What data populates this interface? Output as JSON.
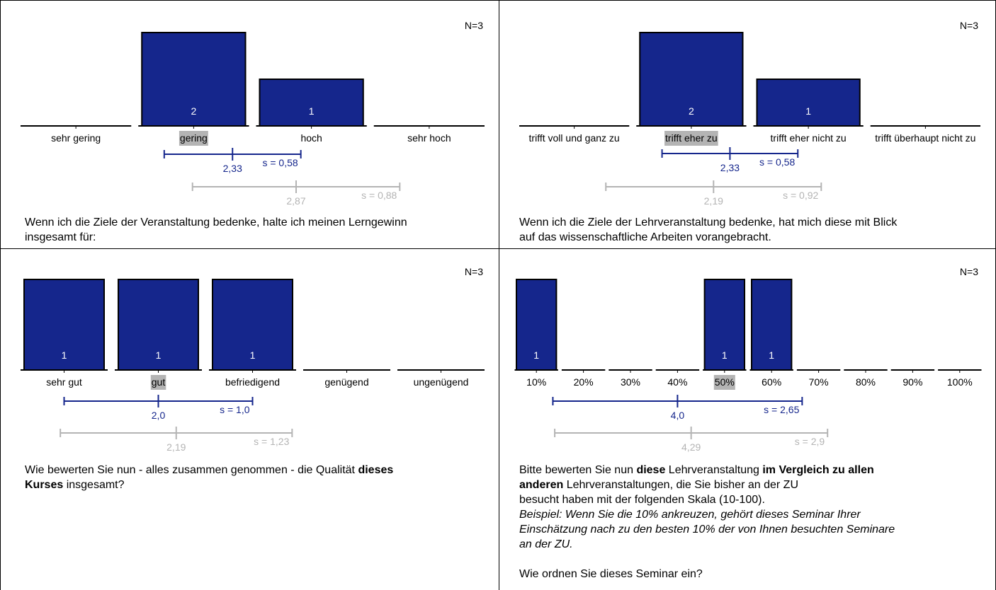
{
  "colors": {
    "bar": "#15268c",
    "bar_border": "#000000",
    "course_stats": "#15268c",
    "comparison_stats": "#b4b4b4",
    "median_highlight": "#b4b4b4"
  },
  "panels": [
    {
      "n_label": "N=3",
      "question_lines": [
        [
          {
            "t": "Wenn ich die Ziele der Veranstaltung bedenke, halte ich meinen Lerngewinn"
          }
        ],
        [
          {
            "t": "insgesamt für:"
          }
        ]
      ],
      "chart_data": {
        "type": "bar",
        "categories": [
          "sehr gering",
          "gering",
          "hoch",
          "sehr hoch"
        ],
        "values": [
          0,
          2,
          1,
          0
        ],
        "highlight_index": 1,
        "course": {
          "mean": 2.33,
          "mean_label": "2,33",
          "sd": 0.58,
          "sd_label": "s = 0,58"
        },
        "comparison": {
          "mean": 2.87,
          "mean_label": "2,87",
          "sd": 0.88,
          "sd_label": "s = 0,88"
        }
      }
    },
    {
      "n_label": "N=3",
      "question_lines": [
        [
          {
            "t": "Wenn ich die Ziele der Lehrveranstaltung bedenke, hat mich diese mit Blick"
          }
        ],
        [
          {
            "t": "auf das wissenschaftliche Arbeiten vorangebracht."
          }
        ]
      ],
      "chart_data": {
        "type": "bar",
        "categories": [
          "trifft voll und ganz zu",
          "trifft eher zu",
          "trifft eher nicht zu",
          "trifft überhaupt nicht zu"
        ],
        "values": [
          0,
          2,
          1,
          0
        ],
        "highlight_index": 1,
        "course": {
          "mean": 2.33,
          "mean_label": "2,33",
          "sd": 0.58,
          "sd_label": "s = 0,58"
        },
        "comparison": {
          "mean": 2.19,
          "mean_label": "2,19",
          "sd": 0.92,
          "sd_label": "s = 0,92"
        }
      }
    },
    {
      "n_label": "N=3",
      "question_lines": [
        [
          {
            "t": "Wie bewerten Sie nun - alles zusammen genommen - die Qualität "
          },
          {
            "t": "dieses",
            "b": true
          }
        ],
        [
          {
            "t": "Kurses",
            "b": true
          },
          {
            "t": " insgesamt?"
          }
        ]
      ],
      "chart_data": {
        "type": "bar",
        "categories": [
          "sehr gut",
          "gut",
          "befriedigend",
          "genügend",
          "ungenügend"
        ],
        "values": [
          1,
          1,
          1,
          0,
          0
        ],
        "highlight_index": 1,
        "course": {
          "mean": 2.0,
          "mean_label": "2,0",
          "sd": 1.0,
          "sd_label": "s = 1,0"
        },
        "comparison": {
          "mean": 2.19,
          "mean_label": "2,19",
          "sd": 1.23,
          "sd_label": "s = 1,23"
        }
      }
    },
    {
      "n_label": "N=3",
      "question_lines": [
        [
          {
            "t": "Bitte bewerten Sie nun "
          },
          {
            "t": "diese",
            "b": true
          },
          {
            "t": " Lehrveranstaltung "
          },
          {
            "t": "im Vergleich zu allen",
            "b": true
          }
        ],
        [
          {
            "t": "anderen ",
            "b": true
          },
          {
            "t": " Lehrveranstaltungen, die Sie bisher an der ZU"
          }
        ],
        [
          {
            "t": "besucht haben mit der folgenden Skala (10-100)."
          }
        ],
        [
          {
            "t": "Beispiel: Wenn Sie die 10% ankreuzen, gehört dieses Seminar Ihrer",
            "i": true
          }
        ],
        [
          {
            "t": "Einschätzung nach zu den besten 10% der von Ihnen besuchten Seminare",
            "i": true
          }
        ],
        [
          {
            "t": "an der ZU.",
            "i": true
          }
        ],
        [
          {
            "t": " "
          }
        ],
        [
          {
            "t": "Wie ordnen Sie dieses Seminar ein?"
          }
        ]
      ],
      "chart_data": {
        "type": "bar",
        "categories": [
          "10%",
          "20%",
          "30%",
          "40%",
          "50%",
          "60%",
          "70%",
          "80%",
          "90%",
          "100%"
        ],
        "values": [
          1,
          0,
          0,
          0,
          1,
          1,
          0,
          0,
          0,
          0
        ],
        "highlight_index": 4,
        "course": {
          "mean": 4.0,
          "mean_label": "4,0",
          "sd": 2.65,
          "sd_label": "s = 2,65"
        },
        "comparison": {
          "mean": 4.29,
          "mean_label": "4,29",
          "sd": 2.9,
          "sd_label": "s = 2,9"
        }
      }
    }
  ]
}
